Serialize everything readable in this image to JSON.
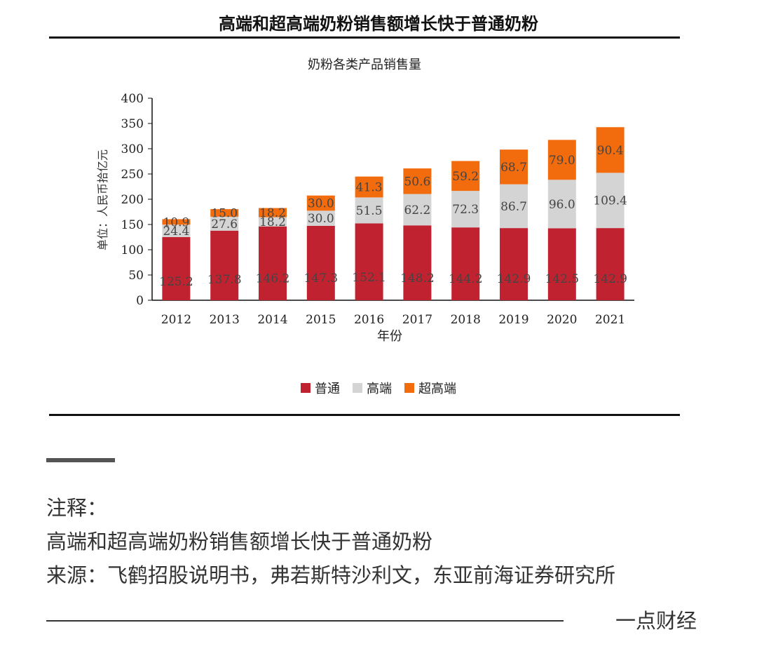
{
  "page": {
    "figure_title": "高端和超高端奶粉销售额增长快于普通奶粉",
    "watermark": "一点财经"
  },
  "notes": {
    "heading": "注释：",
    "line1": "高端和超高端奶粉销售额增长快于普通奶粉",
    "source": "来源：飞鹤招股说明书，弗若斯特沙利文，东亚前海证券研究所"
  },
  "chart_data": {
    "type": "bar",
    "stacked": true,
    "title": "奶粉各类产品销售量",
    "xlabel": "年份",
    "ylabel": "单位：人民币拾亿元",
    "ylim": [
      0,
      400
    ],
    "yticks": [
      0,
      50,
      100,
      150,
      200,
      250,
      300,
      350,
      400
    ],
    "categories": [
      "2012",
      "2013",
      "2014",
      "2015",
      "2016",
      "2017",
      "2018",
      "2019",
      "2020",
      "2021"
    ],
    "series": [
      {
        "name": "普通",
        "color": "#c0232f",
        "values": [
          125.2,
          137.8,
          146.2,
          147.3,
          152.1,
          148.2,
          144.2,
          142.9,
          142.5,
          142.9
        ]
      },
      {
        "name": "高端",
        "color": "#d4d4d4",
        "values": [
          24.4,
          27.6,
          18.2,
          30.0,
          51.5,
          62.2,
          72.3,
          86.7,
          96.0,
          109.4
        ]
      },
      {
        "name": "超高端",
        "color": "#f26c0d",
        "values": [
          10.9,
          15.0,
          18.2,
          30.0,
          41.3,
          50.6,
          59.2,
          68.7,
          79.0,
          90.4
        ]
      }
    ],
    "legend_position": "bottom",
    "grid": false
  }
}
